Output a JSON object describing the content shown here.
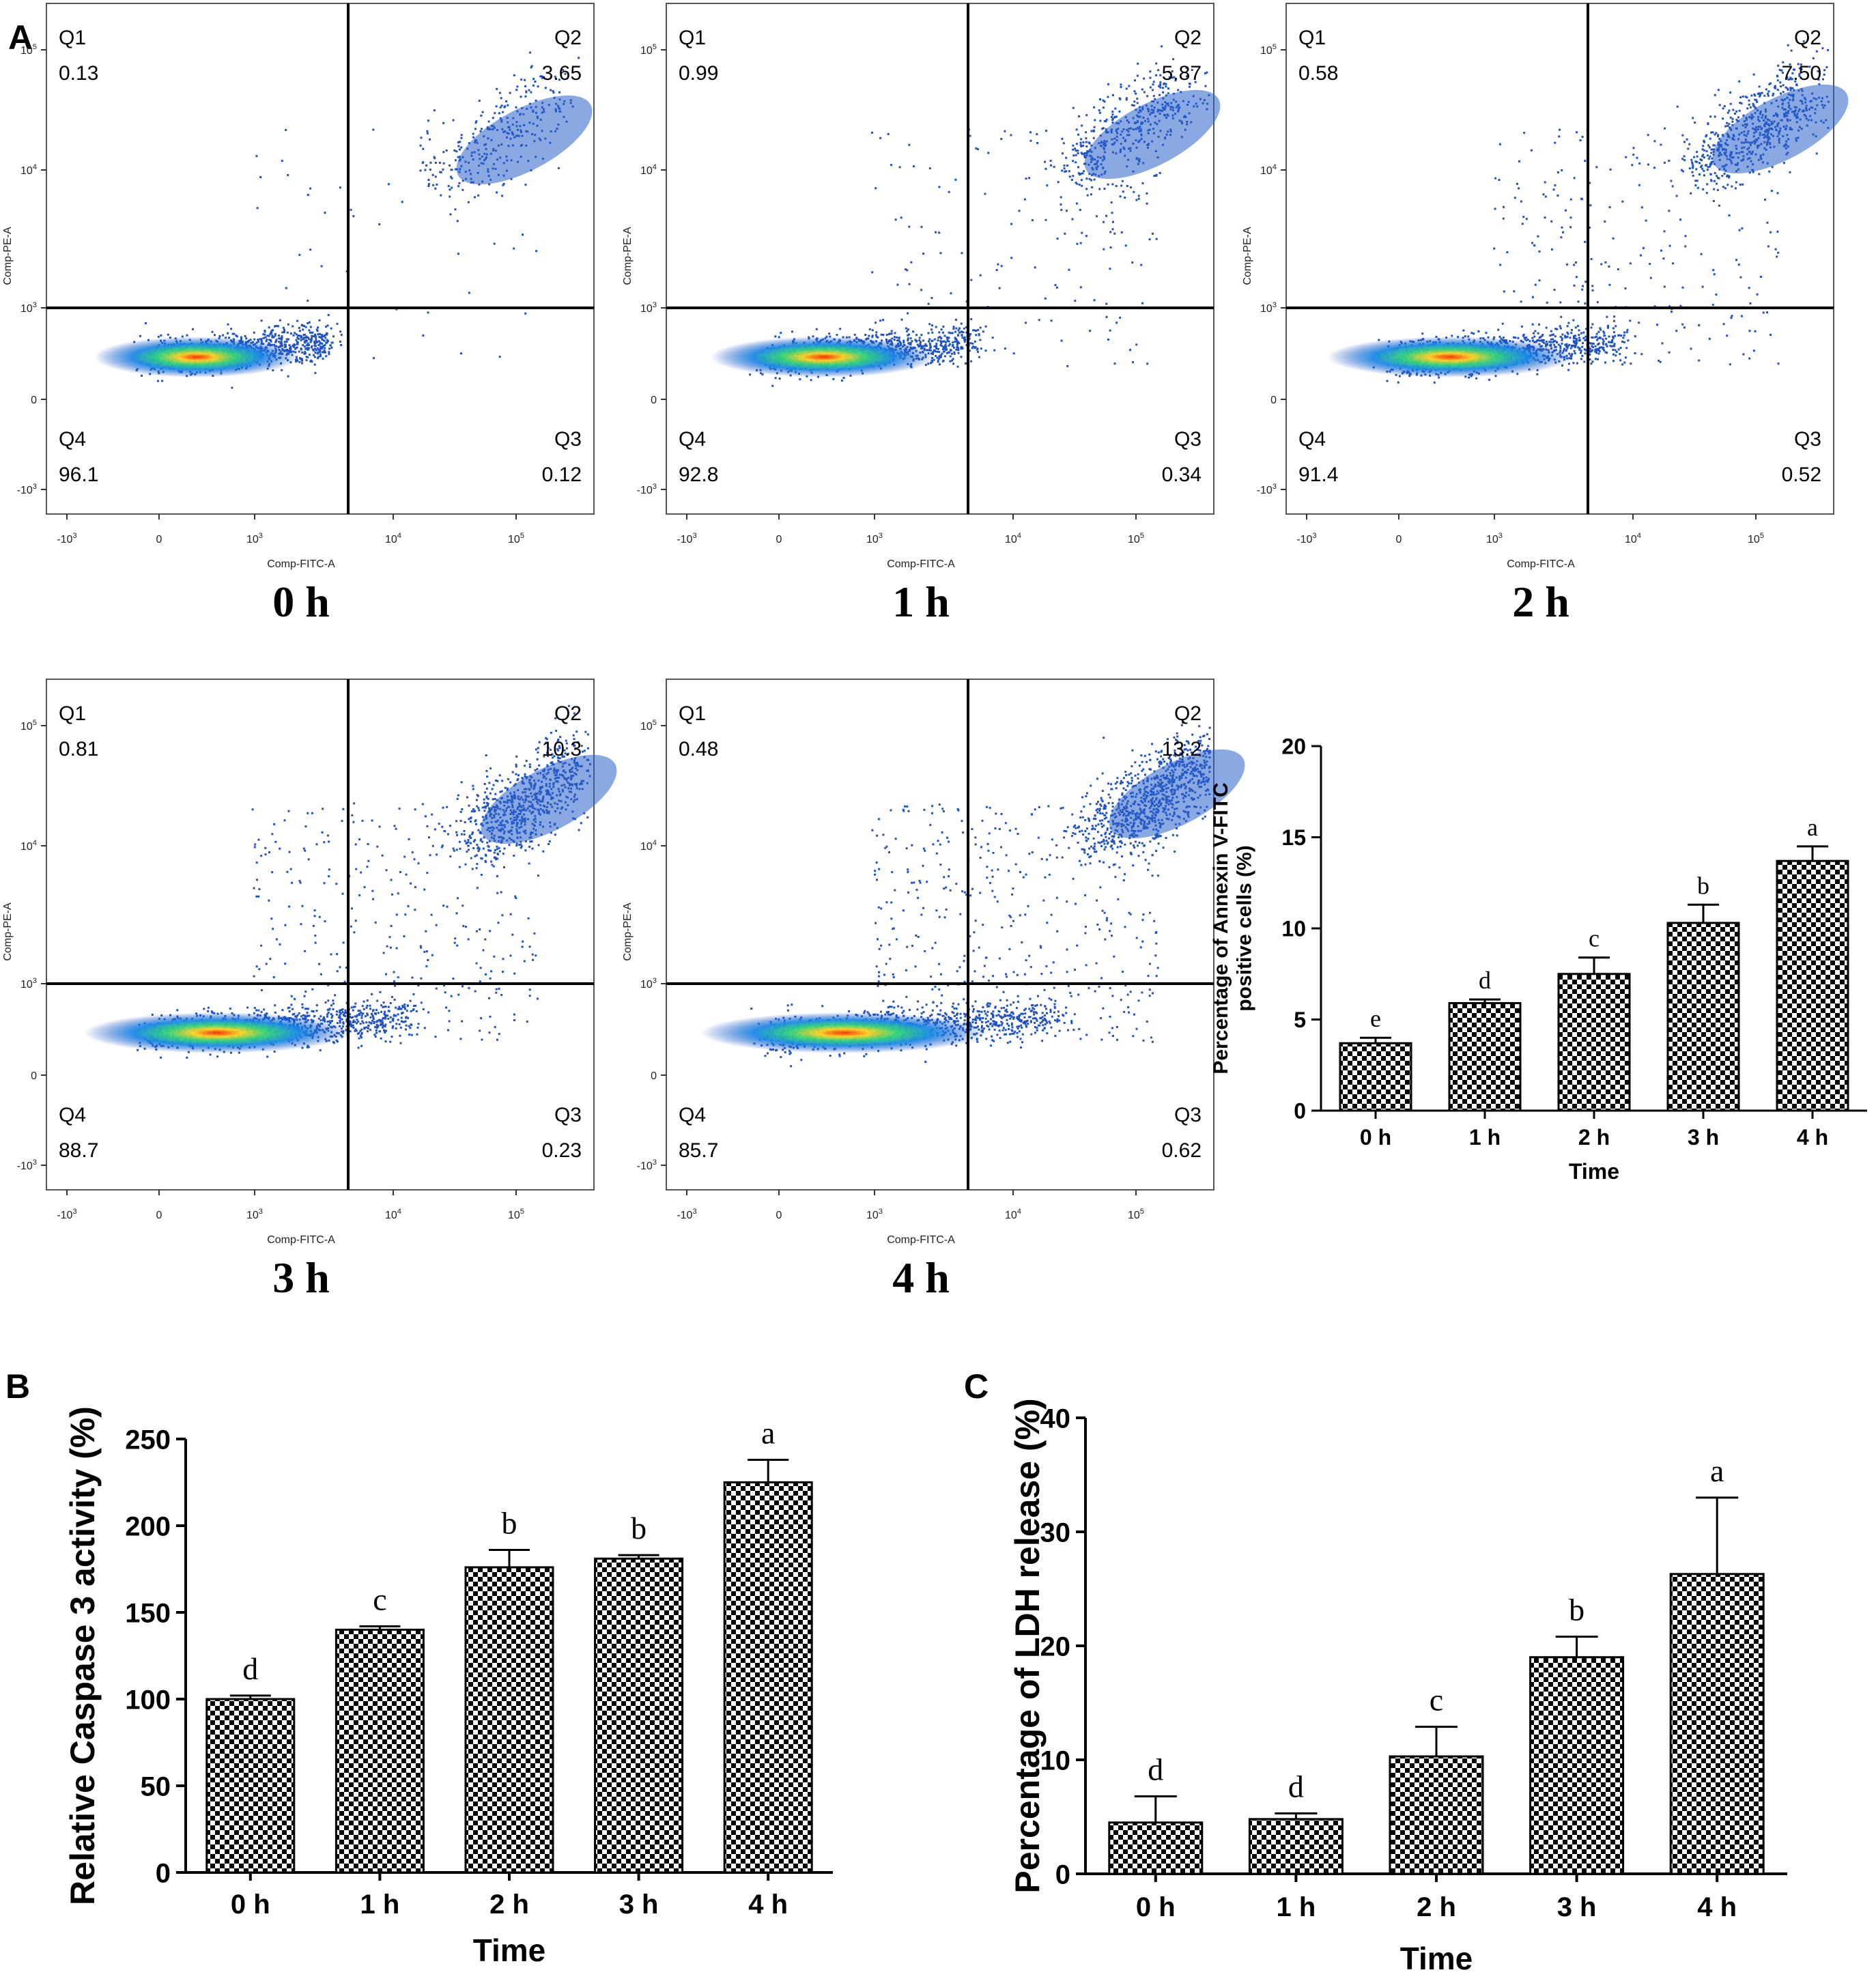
{
  "panels": {
    "a": "A",
    "b": "B",
    "c": "C"
  },
  "flow": {
    "x_axis_label": "Comp-FITC-A",
    "y_axis_label": "Comp-PE-A",
    "x_ticks": [
      "-10^3",
      "0",
      "10^3",
      "10^4",
      "10^5"
    ],
    "y_ticks": [
      "10^5",
      "10^4",
      "10^3",
      "0",
      "-10^3"
    ],
    "plots": [
      {
        "label": "0 h",
        "q1": {
          "name": "Q1",
          "value": "0.13"
        },
        "q2": {
          "name": "Q2",
          "value": "3.65"
        },
        "q3": {
          "name": "Q3",
          "value": "0.12"
        },
        "q4": {
          "name": "Q4",
          "value": "96.1"
        }
      },
      {
        "label": "1 h",
        "q1": {
          "name": "Q1",
          "value": "0.99"
        },
        "q2": {
          "name": "Q2",
          "value": "5.87"
        },
        "q3": {
          "name": "Q3",
          "value": "0.34"
        },
        "q4": {
          "name": "Q4",
          "value": "92.8"
        }
      },
      {
        "label": "2 h",
        "q1": {
          "name": "Q1",
          "value": "0.58"
        },
        "q2": {
          "name": "Q2",
          "value": "7.50"
        },
        "q3": {
          "name": "Q3",
          "value": "0.52"
        },
        "q4": {
          "name": "Q4",
          "value": "91.4"
        }
      },
      {
        "label": "3 h",
        "q1": {
          "name": "Q1",
          "value": "0.81"
        },
        "q2": {
          "name": "Q2",
          "value": "10.3"
        },
        "q3": {
          "name": "Q3",
          "value": "0.23"
        },
        "q4": {
          "name": "Q4",
          "value": "88.7"
        }
      },
      {
        "label": "4 h",
        "q1": {
          "name": "Q1",
          "value": "0.48"
        },
        "q2": {
          "name": "Q2",
          "value": "13.2"
        },
        "q3": {
          "name": "Q3",
          "value": "0.62"
        },
        "q4": {
          "name": "Q4",
          "value": "85.7"
        }
      }
    ]
  },
  "chart_data": [
    {
      "id": "annexin",
      "type": "bar",
      "categories": [
        "0 h",
        "1 h",
        "2 h",
        "3 h",
        "4 h"
      ],
      "values": [
        3.7,
        5.9,
        7.5,
        10.3,
        13.7
      ],
      "errors": [
        0.3,
        0.2,
        0.9,
        1.0,
        0.8
      ],
      "letters": [
        "e",
        "d",
        "c",
        "b",
        "a"
      ],
      "ylabel": "Percentage of Annexin V-FITC positive cells (%)",
      "ylabel_lines": [
        "Percentage of Annexin V-FITC",
        "positive cells (%)"
      ],
      "xlabel": "Time",
      "ylim": [
        0,
        20
      ],
      "yticks": [
        "0",
        "5",
        "10",
        "15",
        "20"
      ]
    },
    {
      "id": "caspase",
      "type": "bar",
      "categories": [
        "0 h",
        "1 h",
        "2 h",
        "3 h",
        "4 h"
      ],
      "values": [
        100,
        140,
        176,
        181,
        225
      ],
      "errors": [
        2,
        2,
        10,
        2,
        13
      ],
      "letters": [
        "d",
        "c",
        "b",
        "b",
        "a"
      ],
      "ylabel": "Relative Caspase 3 activity (%)",
      "xlabel": "Time",
      "ylim": [
        0,
        250
      ],
      "yticks": [
        "0",
        "50",
        "100",
        "150",
        "200",
        "250"
      ]
    },
    {
      "id": "ldh",
      "type": "bar",
      "categories": [
        "0 h",
        "1 h",
        "2 h",
        "3 h",
        "4 h"
      ],
      "values": [
        4.5,
        4.8,
        10.3,
        19.0,
        26.3
      ],
      "errors": [
        2.3,
        0.5,
        2.6,
        1.8,
        6.7
      ],
      "letters": [
        "d",
        "d",
        "c",
        "b",
        "a"
      ],
      "ylabel": "Percentage of LDH release (%)",
      "xlabel": "Time",
      "ylim": [
        0,
        40
      ],
      "yticks": [
        "0",
        "10",
        "20",
        "30",
        "40"
      ]
    }
  ]
}
